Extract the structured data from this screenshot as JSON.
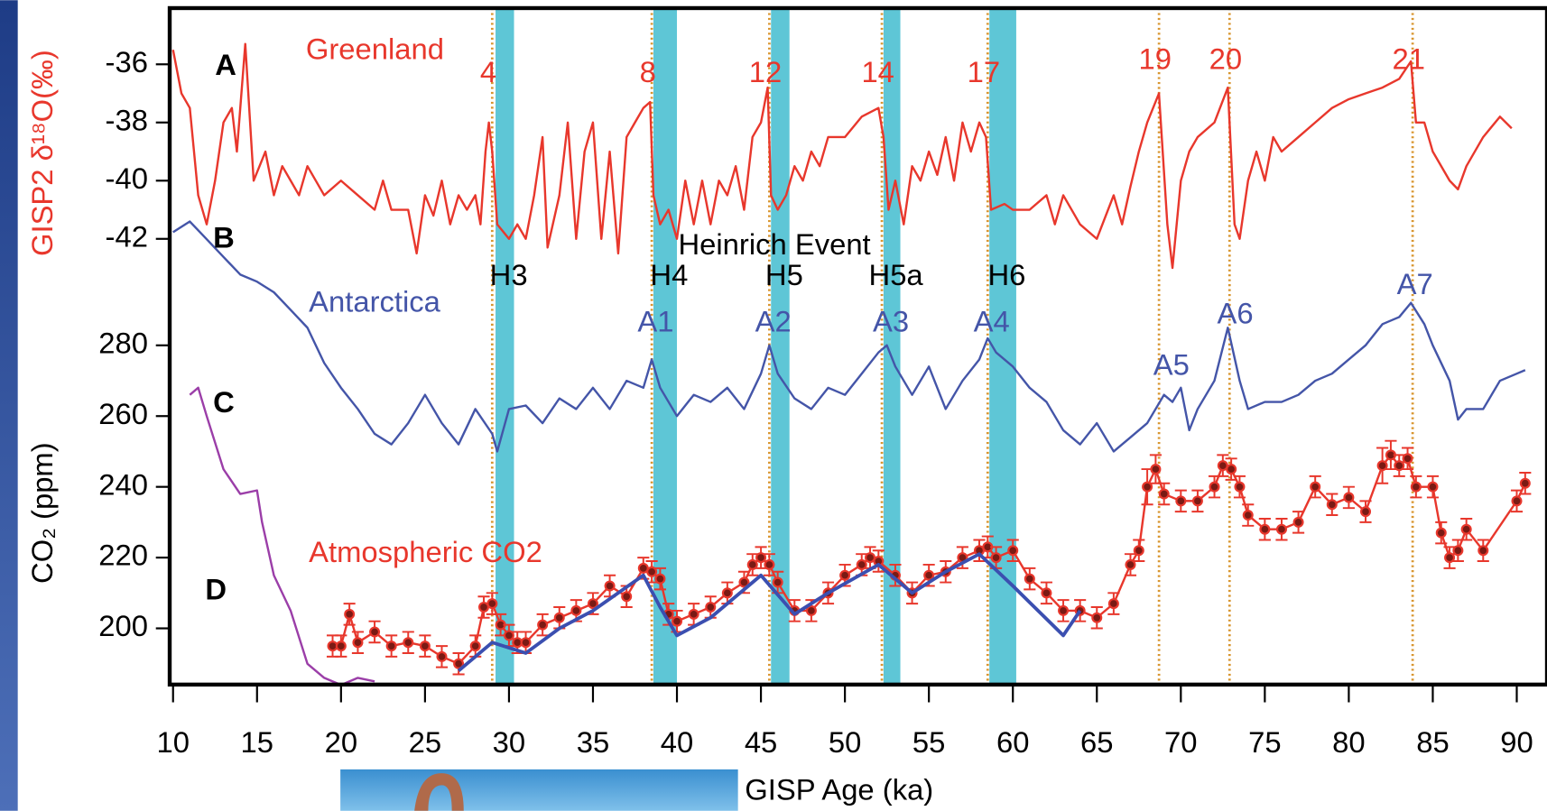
{
  "chart_data": {
    "type": "line",
    "xlabel": "GISP Age (ka)",
    "ylabel": "GISP2 δ¹⁸O(‰)",
    "y2label": "CO₂ (ppm)",
    "xlim": [
      9.8,
      91.8
    ],
    "xticks": [
      10,
      15,
      20,
      25,
      30,
      35,
      40,
      45,
      50,
      55,
      60,
      65,
      70,
      75,
      80,
      85,
      90
    ],
    "ylim": [
      -44,
      -34
    ],
    "yticks": [
      -36,
      -38,
      -40,
      -42
    ],
    "y2lim": [
      185,
      320
    ],
    "y2ticks": [
      200,
      220,
      240,
      260,
      280
    ],
    "panel_labels": [
      "A",
      "B",
      "C",
      "D"
    ],
    "heinrich_title": "Heinrich Event",
    "series": [
      {
        "name": "Greenland",
        "color": "#e8372c",
        "axis": "y",
        "x": [
          10,
          10.5,
          11,
          11.5,
          12,
          12.5,
          13,
          13.5,
          13.8,
          14.3,
          14.8,
          15.5,
          16,
          16.5,
          17,
          17.5,
          18,
          19,
          20,
          21,
          22,
          22.5,
          23,
          24,
          24.5,
          25,
          25.5,
          26,
          26.5,
          27,
          27.5,
          28,
          28.3,
          28.6,
          28.8,
          29,
          29.3,
          30,
          30.5,
          31,
          31.5,
          32,
          32.3,
          33,
          33.5,
          34,
          34.5,
          35,
          35.5,
          36,
          36.5,
          37,
          37.5,
          38,
          38.4,
          38.6,
          39,
          39.5,
          40,
          40.5,
          41,
          41.5,
          42,
          42.5,
          43,
          43.5,
          44,
          44.5,
          45,
          45.4,
          45.6,
          46,
          46.5,
          47,
          47.5,
          48,
          48.5,
          49,
          50,
          51,
          52,
          52.3,
          52.6,
          53,
          53.5,
          54,
          54.5,
          55,
          55.5,
          56,
          56.5,
          57,
          57.5,
          58,
          58.4,
          58.7,
          59.5,
          60,
          61,
          62,
          62.5,
          63,
          64,
          65,
          66,
          66.5,
          67,
          67.5,
          68,
          68.7,
          69.2,
          69.5,
          70,
          70.5,
          71,
          72,
          72.8,
          73.2,
          73.5,
          74,
          74.5,
          75,
          75.5,
          76,
          77,
          78,
          79,
          80,
          81,
          82,
          83,
          83.7,
          84,
          84.5,
          85,
          86,
          86.5,
          87,
          88,
          89,
          89.7
        ],
        "values": [
          -35.5,
          -37,
          -37.5,
          -40.5,
          -41.5,
          -40,
          -38,
          -37.5,
          -39,
          -35.3,
          -40,
          -39,
          -40.5,
          -39.5,
          -40,
          -40.5,
          -39.5,
          -40.5,
          -40,
          -40.5,
          -41,
          -40,
          -41,
          -41,
          -42.5,
          -40.5,
          -41.2,
          -40,
          -41.5,
          -40.5,
          -41,
          -40.5,
          -41.5,
          -39,
          -38,
          -39,
          -41.5,
          -42,
          -41.5,
          -42,
          -40.5,
          -38.5,
          -42.3,
          -40.5,
          -38,
          -42,
          -39,
          -38,
          -42,
          -39,
          -42.5,
          -38.5,
          -38,
          -37.5,
          -37.3,
          -40.5,
          -41.5,
          -41,
          -42,
          -40,
          -41.5,
          -40,
          -41.5,
          -40,
          -40.5,
          -39.5,
          -41,
          -38.5,
          -38,
          -36.8,
          -40.5,
          -41,
          -40.5,
          -39.5,
          -40,
          -39,
          -39.5,
          -38.5,
          -38.5,
          -37.8,
          -37.5,
          -38.5,
          -41,
          -40,
          -41.5,
          -39.5,
          -40,
          -39,
          -39.8,
          -38.5,
          -40,
          -38,
          -39,
          -38,
          -38.5,
          -41,
          -40.8,
          -41,
          -41,
          -40.5,
          -41.5,
          -40.5,
          -41.5,
          -42,
          -40.5,
          -41.5,
          -40.2,
          -39,
          -38,
          -37,
          -41.5,
          -43,
          -40,
          -39,
          -38.5,
          -38,
          -36.8,
          -41.5,
          -42,
          -40,
          -39,
          -40,
          -38.5,
          -39,
          -38.5,
          -38,
          -37.5,
          -37.2,
          -37,
          -36.8,
          -36.5,
          -35.9,
          -38,
          -38,
          -39,
          -40,
          -40.3,
          -39.5,
          -38.5,
          -37.8,
          -38.2
        ]
      },
      {
        "name": "Antarctica",
        "color": "#4455a8",
        "axis": "y2",
        "x": [
          10,
          11,
          12,
          13,
          14,
          15,
          16,
          17,
          18,
          19,
          20,
          21,
          22,
          23,
          24,
          25,
          26,
          27,
          28,
          29,
          29.3,
          30,
          31,
          32,
          33,
          34,
          35,
          36,
          37,
          38,
          38.5,
          39,
          40,
          41,
          42,
          43,
          44,
          45,
          45.5,
          46,
          47,
          48,
          49,
          50,
          51,
          52,
          52.5,
          53,
          54,
          55,
          56,
          57,
          58,
          58.5,
          59,
          60,
          61,
          62,
          63,
          64,
          65,
          66,
          67,
          68,
          69,
          69.5,
          70,
          70.5,
          71,
          72,
          72.8,
          73.5,
          74,
          75,
          76,
          77,
          78,
          79,
          80,
          81,
          82,
          83,
          83.7,
          84.5,
          85,
          86,
          86.5,
          87,
          88,
          89,
          90,
          90.5
        ],
        "values": [
          312,
          315,
          310,
          305,
          300,
          298,
          295,
          290,
          285,
          275,
          268,
          262,
          255,
          252,
          258,
          266,
          258,
          252,
          262,
          255,
          250,
          262,
          263,
          258,
          265,
          262,
          268,
          262,
          270,
          268,
          276,
          268,
          260,
          266,
          264,
          268,
          262,
          272,
          280,
          272,
          265,
          262,
          268,
          266,
          272,
          278,
          280,
          274,
          266,
          274,
          262,
          270,
          276,
          282,
          278,
          274,
          268,
          264,
          256,
          252,
          258,
          250,
          254,
          258,
          266,
          264,
          268,
          256,
          262,
          270,
          285,
          270,
          262,
          264,
          264,
          266,
          270,
          272,
          276,
          280,
          286,
          288,
          292,
          286,
          280,
          270,
          259,
          262,
          262,
          270,
          272,
          273
        ]
      },
      {
        "name": "Atmospheric CO2",
        "color": "#e8372c",
        "axis": "y2",
        "x": [
          19.5,
          20,
          20.5,
          21,
          22,
          23,
          24,
          25,
          26,
          27,
          28,
          28.5,
          29,
          29.5,
          30,
          30.5,
          31,
          32,
          33,
          34,
          35,
          36,
          37,
          38,
          38.5,
          39,
          39.5,
          40,
          41,
          42,
          43,
          44,
          44.5,
          45,
          45.5,
          46,
          47,
          48,
          49,
          50,
          51,
          51.5,
          52,
          53,
          54,
          55,
          56,
          57,
          58,
          58.5,
          59,
          60,
          61,
          62,
          63,
          64,
          65,
          66,
          67,
          67.5,
          68,
          68.5,
          69,
          70,
          71,
          72,
          72.5,
          73,
          73.5,
          74,
          75,
          76,
          77,
          78,
          79,
          80,
          81,
          82,
          82.5,
          83,
          83.5,
          84,
          85,
          85.5,
          86,
          86.5,
          87,
          88,
          90,
          90.5
        ],
        "values": [
          195,
          195,
          204,
          196,
          199,
          195,
          196,
          195,
          192,
          190,
          195,
          206,
          207,
          201,
          198,
          196,
          196,
          201,
          203,
          205,
          207,
          212,
          209,
          217,
          216,
          214,
          204,
          202,
          204,
          206,
          210,
          213,
          218,
          220,
          218,
          213,
          205,
          205,
          210,
          215,
          218,
          220,
          219,
          215,
          210,
          215,
          216,
          220,
          222,
          223,
          220,
          222,
          214,
          210,
          205,
          205,
          203,
          207,
          218,
          222,
          240,
          245,
          238,
          236,
          236,
          240,
          246,
          245,
          240,
          232,
          228,
          228,
          230,
          240,
          235,
          237,
          233,
          246,
          249,
          246,
          248,
          240,
          240,
          227,
          220,
          222,
          228,
          222,
          236,
          241
        ],
        "errors": [
          3,
          3,
          3,
          3,
          3,
          3,
          3,
          3,
          3,
          3,
          3,
          3,
          3,
          3,
          3,
          3,
          3,
          3,
          3,
          3,
          3,
          3,
          3,
          3,
          3,
          3,
          3,
          3,
          3,
          3,
          3,
          3,
          3,
          3,
          3,
          3,
          3,
          3,
          3,
          3,
          3,
          3,
          3,
          3,
          3,
          3,
          3,
          3,
          3,
          3,
          3,
          3,
          3,
          3,
          3,
          3,
          3,
          3,
          3,
          3,
          5,
          4,
          3,
          3,
          3,
          3,
          3,
          3,
          3,
          3,
          3,
          3,
          3,
          3,
          3,
          3,
          3,
          5,
          4,
          3,
          3,
          3,
          3,
          3,
          3,
          3,
          3,
          3,
          3,
          3
        ]
      },
      {
        "color": "#9b3ea8",
        "axis": "y2",
        "x": [
          11,
          11.5,
          12,
          13,
          14,
          15,
          15.3,
          16,
          17,
          18,
          19,
          20,
          21,
          22
        ],
        "values": [
          266,
          268,
          260,
          245,
          238,
          239,
          230,
          215,
          205,
          190,
          186,
          184,
          186,
          185
        ]
      },
      {
        "color": "#3b4fb0",
        "axis": "y2",
        "x": [
          27,
          29,
          31,
          33,
          35,
          38,
          39,
          40,
          42,
          45,
          47,
          49,
          52,
          54,
          56,
          58,
          60,
          63,
          64
        ],
        "values": [
          188,
          196,
          193,
          200,
          205,
          215,
          206,
          198,
          203,
          215,
          204,
          210,
          218,
          210,
          216,
          221,
          212,
          198,
          205
        ]
      }
    ],
    "events": [
      {
        "label": "4",
        "x": 29.0
      },
      {
        "label": "8",
        "x": 38.5
      },
      {
        "label": "12",
        "x": 45.5
      },
      {
        "label": "14",
        "x": 52.2
      },
      {
        "label": "17",
        "x": 58.5
      },
      {
        "label": "19",
        "x": 68.7
      },
      {
        "label": "20",
        "x": 72.9
      },
      {
        "label": "21",
        "x": 83.8
      }
    ],
    "heinrich_bands": [
      {
        "label": "H3",
        "start": 29.2,
        "end": 30.3
      },
      {
        "label": "H4",
        "start": 38.6,
        "end": 40.0
      },
      {
        "label": "H5",
        "start": 45.6,
        "end": 46.7
      },
      {
        "label": "H5a",
        "start": 52.3,
        "end": 53.3
      },
      {
        "label": "H6",
        "start": 58.6,
        "end": 60.2
      }
    ],
    "antarctic_events": [
      {
        "label": "A1",
        "x": 38.5
      },
      {
        "label": "A2",
        "x": 45.5
      },
      {
        "label": "A3",
        "x": 52.5
      },
      {
        "label": "A4",
        "x": 58.5
      },
      {
        "label": "A5",
        "x": 69.2
      },
      {
        "label": "A6",
        "x": 73.0
      },
      {
        "label": "A7",
        "x": 83.7
      }
    ]
  }
}
